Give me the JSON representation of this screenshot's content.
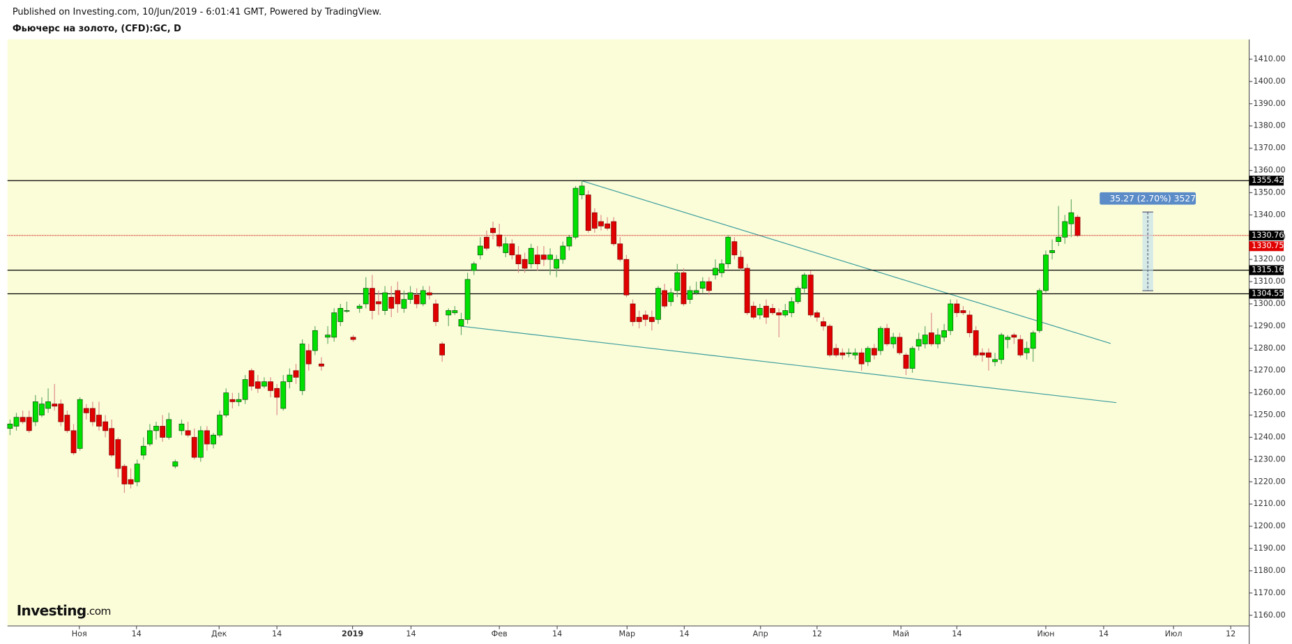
{
  "chart_data": {
    "type": "candlestick",
    "header": "Published on Investing.com, 10/Jun/2019 - 6:01:41 GMT, Powered by TradingView.",
    "title": "Фьючерс на золото, (CFD):GC, D",
    "logo": "Investing",
    "logo_suffix": ".com",
    "up_color": "#00e000",
    "down_color": "#e00000",
    "background": "#fbfdd9",
    "ylim": [
      1155.2,
      1418.9
    ],
    "yticks": [
      {
        "value": 1160,
        "label": "1160.00"
      },
      {
        "value": 1170,
        "label": "1170.00"
      },
      {
        "value": 1180,
        "label": "1180.00"
      },
      {
        "value": 1190,
        "label": "1190.00"
      },
      {
        "value": 1200,
        "label": "1200.00"
      },
      {
        "value": 1210,
        "label": "1210.00"
      },
      {
        "value": 1220,
        "label": "1220.00"
      },
      {
        "value": 1230,
        "label": "1230.00"
      },
      {
        "value": 1240,
        "label": "1240.00"
      },
      {
        "value": 1250,
        "label": "1250.00"
      },
      {
        "value": 1260,
        "label": "1260.00"
      },
      {
        "value": 1270,
        "label": "1270.00"
      },
      {
        "value": 1280,
        "label": "1280.00"
      },
      {
        "value": 1290,
        "label": "1290.00"
      },
      {
        "value": 1300,
        "label": "1300.00"
      },
      {
        "value": 1310,
        "label": "1310.00"
      },
      {
        "value": 1320,
        "label": "1320.00"
      },
      {
        "value": 1330,
        "label": "1330.00"
      },
      {
        "value": 1340,
        "label": "1340.00"
      },
      {
        "value": 1350,
        "label": "1350.00"
      },
      {
        "value": 1360,
        "label": "1360.00"
      },
      {
        "value": 1370,
        "label": "1370.00"
      },
      {
        "value": 1380,
        "label": "1380.00"
      },
      {
        "value": 1390,
        "label": "1390.00"
      },
      {
        "value": 1400,
        "label": "1400.00"
      },
      {
        "value": 1410,
        "label": "1410.00"
      }
    ],
    "xlim": [
      -0.4,
      195.0
    ],
    "xticks": [
      {
        "value": 10.9,
        "label": "Ноя"
      },
      {
        "value": 19.9,
        "label": "14"
      },
      {
        "value": 32.9,
        "label": "Дек"
      },
      {
        "value": 42.0,
        "label": "14"
      },
      {
        "value": 53.9,
        "label": "2019"
      },
      {
        "value": 63.1,
        "label": "14"
      },
      {
        "value": 77.0,
        "label": "Фев"
      },
      {
        "value": 86.1,
        "label": "14"
      },
      {
        "value": 97.1,
        "label": "Мар"
      },
      {
        "value": 106.1,
        "label": "14"
      },
      {
        "value": 118.1,
        "label": "Апр"
      },
      {
        "value": 127.0,
        "label": "12"
      },
      {
        "value": 140.2,
        "label": "Май"
      },
      {
        "value": 149.0,
        "label": "14"
      },
      {
        "value": 163.0,
        "label": "Июн"
      },
      {
        "value": 172.1,
        "label": "14"
      },
      {
        "value": 183.1,
        "label": "Июл"
      },
      {
        "value": 192.1,
        "label": "12"
      }
    ],
    "price_lines": [
      1355.42,
      1315.16,
      1304.55
    ],
    "last_price_line": 1330.76,
    "trendlines": [
      {
        "x": [
          89.9,
          173.2
        ],
        "y": [
          1355.4,
          1282.2
        ]
      },
      {
        "x": [
          70.9,
          174.1
        ],
        "y": [
          1290.0,
          1255.6
        ]
      }
    ],
    "measure": {
      "label": "35.27 (2.70%) 3527",
      "x": [
        178.2,
        179.9
      ],
      "y": [
        1305.9,
        1341.3
      ]
    },
    "candles": [
      [
        1244,
        1248,
        1241,
        1246
      ],
      [
        1245,
        1251,
        1243,
        1249
      ],
      [
        1249,
        1252,
        1246,
        1247
      ],
      [
        1249,
        1252,
        1242,
        1243
      ],
      [
        1247,
        1259,
        1245,
        1256
      ],
      [
        1250,
        1258,
        1249,
        1255
      ],
      [
        1253,
        1262,
        1251,
        1256
      ],
      [
        1255,
        1264,
        1252,
        1254
      ],
      [
        1255,
        1257,
        1245,
        1247
      ],
      [
        1250,
        1252,
        1242,
        1243
      ],
      [
        1243,
        1246,
        1232,
        1233
      ],
      [
        1235,
        1258,
        1234,
        1257
      ],
      [
        1253,
        1255,
        1248,
        1251
      ],
      [
        1253,
        1256,
        1245,
        1247
      ],
      [
        1250,
        1256,
        1243,
        1245
      ],
      [
        1247,
        1250,
        1240,
        1243
      ],
      [
        1244,
        1248,
        1231,
        1232
      ],
      [
        1239,
        1240,
        1222,
        1226
      ],
      [
        1227,
        1228,
        1215,
        1219
      ],
      [
        1221,
        1226,
        1217,
        1219
      ],
      [
        1220,
        1230,
        1218,
        1228
      ],
      [
        1232,
        1240,
        1230,
        1236
      ],
      [
        1237,
        1246,
        1236,
        1243
      ],
      [
        1243,
        1247,
        1239,
        1245
      ],
      [
        1245,
        1250,
        1238,
        1240
      ],
      [
        1240,
        1251,
        1239,
        1248
      ],
      [
        1227,
        1230,
        1226,
        1229
      ],
      [
        1243,
        1248,
        1241,
        1246
      ],
      [
        1243,
        1247,
        1240,
        1241
      ],
      [
        1240,
        1244,
        1230,
        1231
      ],
      [
        1231,
        1245,
        1229,
        1243
      ],
      [
        1243,
        1245,
        1234,
        1237
      ],
      [
        1237,
        1242,
        1235,
        1241
      ],
      [
        1241,
        1252,
        1240,
        1250
      ],
      [
        1250,
        1262,
        1249,
        1260
      ],
      [
        1257,
        1260,
        1253,
        1256
      ],
      [
        1256,
        1260,
        1254,
        1257
      ],
      [
        1257,
        1268,
        1255,
        1266
      ],
      [
        1270,
        1271,
        1261,
        1263
      ],
      [
        1265,
        1268,
        1260,
        1262
      ],
      [
        1263,
        1267,
        1262,
        1265
      ],
      [
        1265,
        1267,
        1258,
        1261
      ],
      [
        1262,
        1264,
        1250,
        1258
      ],
      [
        1253,
        1268,
        1252,
        1265
      ],
      [
        1265,
        1271,
        1262,
        1268
      ],
      [
        1270,
        1273,
        1264,
        1267
      ],
      [
        1261,
        1284,
        1259,
        1282
      ],
      [
        1279,
        1282,
        1270,
        1273
      ],
      [
        1279,
        1290,
        1277,
        1288
      ],
      [
        1273,
        1276,
        1270,
        1272
      ],
      [
        1285,
        1290,
        1282,
        1286
      ],
      [
        1285,
        1298,
        1283,
        1296
      ],
      [
        1292,
        1300,
        1290,
        1298
      ],
      [
        1297,
        1301,
        1296,
        1297
      ],
      [
        1285,
        1286,
        1283,
        1284
      ],
      [
        1298,
        1300,
        1296,
        1299
      ],
      [
        1300,
        1312,
        1298,
        1307
      ],
      [
        1307,
        1313,
        1293,
        1297
      ],
      [
        1301,
        1306,
        1295,
        1300
      ],
      [
        1297,
        1308,
        1295,
        1305
      ],
      [
        1303,
        1308,
        1294,
        1298
      ],
      [
        1306,
        1310,
        1296,
        1300
      ],
      [
        1298,
        1306,
        1296,
        1302
      ],
      [
        1302,
        1308,
        1300,
        1305
      ],
      [
        1304,
        1307,
        1298,
        1300
      ],
      [
        1300,
        1308,
        1299,
        1306
      ],
      [
        1305,
        1308,
        1302,
        1304
      ],
      [
        1300,
        1302,
        1290,
        1292
      ],
      [
        1282,
        1283,
        1274,
        1277
      ],
      [
        1295,
        1298,
        1290,
        1297
      ],
      [
        1296,
        1299,
        1295,
        1297
      ],
      [
        1290,
        1296,
        1286,
        1293
      ],
      [
        1293,
        1314,
        1291,
        1311
      ],
      [
        1315,
        1319,
        1313,
        1318
      ],
      [
        1322,
        1330,
        1320,
        1326
      ],
      [
        1330,
        1333,
        1324,
        1325
      ],
      [
        1334,
        1337,
        1329,
        1332
      ],
      [
        1331,
        1336,
        1325,
        1326
      ],
      [
        1323,
        1330,
        1321,
        1327
      ],
      [
        1327,
        1329,
        1320,
        1322
      ],
      [
        1322,
        1326,
        1314,
        1318
      ],
      [
        1320,
        1323,
        1314,
        1316
      ],
      [
        1318,
        1327,
        1316,
        1325
      ],
      [
        1322,
        1326,
        1315,
        1318
      ],
      [
        1322,
        1326,
        1317,
        1320
      ],
      [
        1320,
        1325,
        1313,
        1322
      ],
      [
        1316,
        1322,
        1312,
        1320
      ],
      [
        1320,
        1328,
        1318,
        1326
      ],
      [
        1326,
        1331,
        1324,
        1330
      ],
      [
        1330,
        1353,
        1329,
        1352
      ],
      [
        1349,
        1355.42,
        1347,
        1353
      ],
      [
        1349,
        1351,
        1332,
        1333
      ],
      [
        1341,
        1343,
        1332,
        1334
      ],
      [
        1337,
        1340,
        1333,
        1335
      ],
      [
        1336,
        1339,
        1333,
        1334
      ],
      [
        1337,
        1339,
        1326,
        1327
      ],
      [
        1327,
        1330,
        1319,
        1320
      ],
      [
        1320,
        1322,
        1303,
        1304
      ],
      [
        1300,
        1302,
        1290,
        1292
      ],
      [
        1294,
        1297,
        1289,
        1292
      ],
      [
        1295,
        1297,
        1290,
        1293
      ],
      [
        1294,
        1297,
        1288,
        1292
      ],
      [
        1293,
        1308,
        1291,
        1307
      ],
      [
        1306,
        1309,
        1298,
        1299
      ],
      [
        1301,
        1307,
        1299,
        1305
      ],
      [
        1306,
        1318,
        1303,
        1314
      ],
      [
        1314,
        1316,
        1299,
        1300
      ],
      [
        1302,
        1308,
        1300,
        1306
      ],
      [
        1305,
        1310,
        1304,
        1306
      ],
      [
        1307,
        1312,
        1305,
        1310
      ],
      [
        1310,
        1312,
        1304,
        1306
      ],
      [
        1313,
        1320,
        1311,
        1316
      ],
      [
        1314,
        1320,
        1312,
        1318
      ],
      [
        1318,
        1331,
        1316,
        1330
      ],
      [
        1328,
        1330,
        1320,
        1322
      ],
      [
        1321,
        1324,
        1315,
        1316
      ],
      [
        1316,
        1318,
        1295,
        1296
      ],
      [
        1299,
        1301,
        1293,
        1294
      ],
      [
        1295,
        1300,
        1293,
        1298
      ],
      [
        1299,
        1302,
        1291,
        1294
      ],
      [
        1298,
        1300,
        1295,
        1296
      ],
      [
        1296,
        1298,
        1285,
        1295
      ],
      [
        1295,
        1300,
        1294,
        1297
      ],
      [
        1296,
        1303,
        1294,
        1301
      ],
      [
        1301,
        1308,
        1300,
        1307
      ],
      [
        1307,
        1314,
        1305,
        1313
      ],
      [
        1313,
        1315,
        1294,
        1295
      ],
      [
        1296,
        1297,
        1292,
        1294
      ],
      [
        1292,
        1294,
        1288,
        1290
      ],
      [
        1290,
        1291,
        1276,
        1277
      ],
      [
        1280,
        1282,
        1276,
        1277
      ],
      [
        1278,
        1280,
        1275,
        1277
      ],
      [
        1278,
        1280,
        1276,
        1278
      ],
      [
        1277,
        1280,
        1275,
        1278
      ],
      [
        1278,
        1280,
        1270,
        1273
      ],
      [
        1274,
        1281,
        1272,
        1280
      ],
      [
        1280,
        1282,
        1275,
        1277
      ],
      [
        1279,
        1290,
        1277,
        1289
      ],
      [
        1289,
        1291,
        1281,
        1282
      ],
      [
        1282,
        1287,
        1280,
        1285
      ],
      [
        1285,
        1287,
        1277,
        1278
      ],
      [
        1277,
        1278,
        1268,
        1271
      ],
      [
        1271,
        1281,
        1269,
        1280
      ],
      [
        1281,
        1287,
        1279,
        1284
      ],
      [
        1282,
        1290,
        1280,
        1286
      ],
      [
        1287,
        1296,
        1281,
        1282
      ],
      [
        1282,
        1289,
        1280,
        1286
      ],
      [
        1285,
        1291,
        1283,
        1288
      ],
      [
        1288,
        1302,
        1286,
        1300
      ],
      [
        1300,
        1302,
        1294,
        1296
      ],
      [
        1297,
        1299,
        1295,
        1296
      ],
      [
        1295,
        1297,
        1285,
        1287
      ],
      [
        1288,
        1290,
        1276,
        1277
      ],
      [
        1278,
        1280,
        1274,
        1277
      ],
      [
        1278,
        1280,
        1270,
        1276
      ],
      [
        1274,
        1278,
        1272,
        1275
      ],
      [
        1275,
        1287,
        1273,
        1286
      ],
      [
        1284,
        1286,
        1280,
        1285
      ],
      [
        1286,
        1287,
        1282,
        1285
      ],
      [
        1284,
        1286,
        1276,
        1277
      ],
      [
        1278,
        1283,
        1275,
        1280
      ],
      [
        1280,
        1288,
        1274,
        1287
      ],
      [
        1288,
        1307,
        1287,
        1306
      ],
      [
        1306,
        1324,
        1305,
        1322
      ],
      [
        1323,
        1329,
        1320,
        1324
      ],
      [
        1328,
        1344,
        1326,
        1330
      ],
      [
        1330,
        1340,
        1327,
        1337
      ],
      [
        1336,
        1347,
        1330,
        1341
      ],
      [
        1339,
        1340,
        1330,
        1330.75
      ]
    ]
  }
}
